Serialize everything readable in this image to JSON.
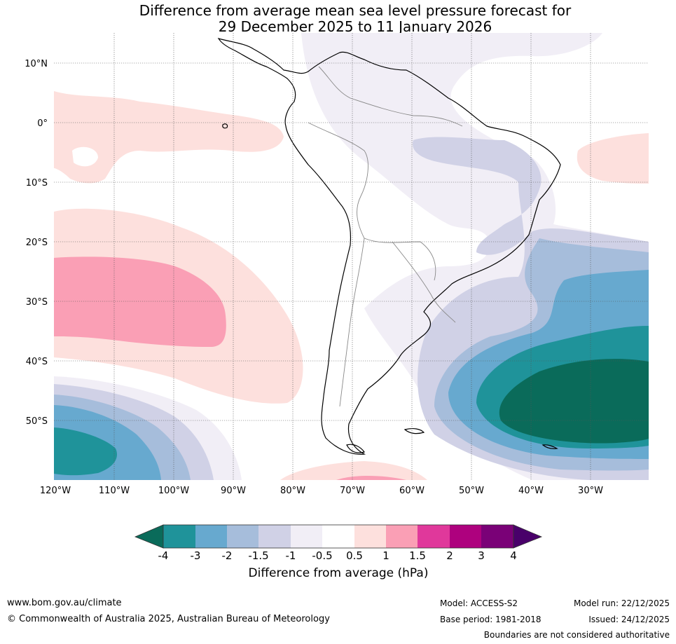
{
  "title": {
    "line1": "Difference from average mean sea level pressure forecast for",
    "line2": "29 December 2025 to 11 January 2026"
  },
  "map": {
    "lat_labels": [
      "10°N",
      "0°",
      "10°S",
      "20°S",
      "30°S",
      "40°S",
      "50°S"
    ],
    "lon_labels": [
      "120°W",
      "110°W",
      "100°W",
      "90°W",
      "80°W",
      "70°W",
      "60°W",
      "50°W",
      "40°W",
      "30°W"
    ]
  },
  "colorbar": {
    "ticks": [
      "-4",
      "-3",
      "-2",
      "-1.5",
      "-1",
      "-0.5",
      "0.5",
      "1",
      "1.5",
      "2",
      "3",
      "4"
    ],
    "colors": [
      "#0a6b5a",
      "#1f939a",
      "#67a9cf",
      "#a6bddb",
      "#d0d1e6",
      "#f1eef6",
      "#ffffff",
      "#fde0dd",
      "#fa9fb5",
      "#e0389b",
      "#ae017e",
      "#7a0177",
      "#49006a"
    ],
    "label": "Difference from average (hPa)"
  },
  "footer": {
    "website": "www.bom.gov.au/climate",
    "copyright": "© Commonwealth of Australia 2025, Australian Bureau of Meteorology",
    "model": "Model: ACCESS-S2",
    "base_period": "Base period: 1981-2018",
    "model_run": "Model run: 22/12/2025",
    "issued": "Issued: 24/12/2025",
    "disclaimer": "Boundaries are not considered authoritative"
  }
}
